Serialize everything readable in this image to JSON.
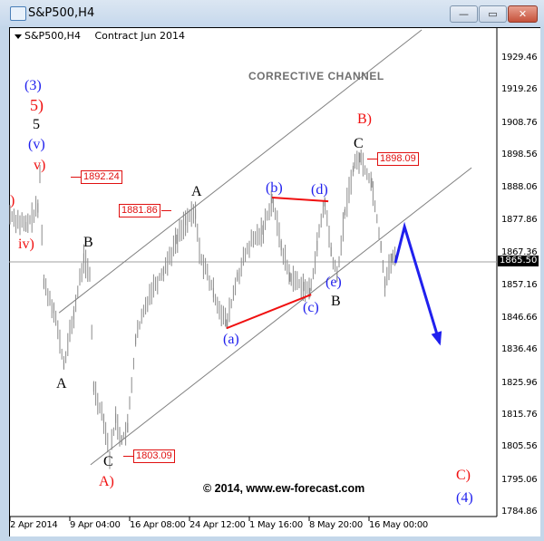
{
  "window": {
    "title": "S&P500,H4",
    "buttons": {
      "minimize": "—",
      "maximize": "▭",
      "close": "✕"
    }
  },
  "header": {
    "symbol": "S&P500,H4",
    "contract": "Contract Jun 2014"
  },
  "annotations": {
    "channel_title": "CORRECTIVE CHANNEL",
    "copyright": "© 2014, www.ew-forecast.com",
    "labels": {
      "w3": "(3)",
      "w5r": "5)",
      "w5": "5",
      "wv": "(v)",
      "wvr": "v)",
      "wiv": "iv)",
      "wpartial": ")",
      "B1": "B",
      "A1": "A",
      "C1": "C",
      "A_red": "A)",
      "A2": "A",
      "a": "(a)",
      "b": "(b)",
      "c": "(c)",
      "d": "(d)",
      "e": "(e)",
      "B2": "B",
      "C2": "C",
      "B_red": "B)",
      "C_red": "C)",
      "w4": "(4)"
    },
    "callouts": {
      "p1892": "1892.24",
      "p1881": "1881.86",
      "p1898": "1898.09",
      "p1803": "1803.09"
    }
  },
  "colors": {
    "bars": "#8a8a8a",
    "red": "#f01010",
    "blue": "#2020ee",
    "channel": "#808080"
  },
  "chart_data": {
    "type": "line",
    "title": "S&P500,H4",
    "ylim": [
      1784.86,
      1929.46
    ],
    "y_ticks": [
      "1929.46",
      "1919.26",
      "1908.76",
      "1898.56",
      "1888.06",
      "1877.86",
      "1867.36",
      "1857.16",
      "1846.66",
      "1836.46",
      "1825.96",
      "1815.76",
      "1805.56",
      "1795.06",
      "1784.86"
    ],
    "x_ticks": [
      "2 Apr 2014",
      "9 Apr 04:00",
      "16 Apr 08:00",
      "24 Apr 12:00",
      "1 May 16:00",
      "8 May 20:00",
      "16 May 00:00"
    ],
    "current_price": "1865.50",
    "price_path": [
      [
        0,
        1880
      ],
      [
        4,
        1876
      ],
      [
        7,
        1882
      ],
      [
        7.5,
        1892
      ],
      [
        8.5,
        1858
      ],
      [
        11,
        1850
      ],
      [
        13.5,
        1832
      ],
      [
        16,
        1848
      ],
      [
        18.5,
        1866
      ],
      [
        20,
        1860
      ],
      [
        21,
        1825
      ],
      [
        23.5,
        1815
      ],
      [
        25,
        1803
      ],
      [
        26.5,
        1815
      ],
      [
        28,
        1808
      ],
      [
        29.5,
        1812
      ],
      [
        31.5,
        1840
      ],
      [
        35,
        1855
      ],
      [
        38.5,
        1862
      ],
      [
        41.8,
        1872
      ],
      [
        44,
        1878
      ],
      [
        46.5,
        1880
      ],
      [
        47.5,
        1868
      ],
      [
        51,
        1855
      ],
      [
        54.3,
        1845
      ],
      [
        57,
        1860
      ],
      [
        60,
        1870
      ],
      [
        63.4,
        1875
      ],
      [
        65.7,
        1885
      ],
      [
        68,
        1870
      ],
      [
        70.2,
        1860
      ],
      [
        73.6,
        1857
      ],
      [
        75.2,
        1855
      ],
      [
        77,
        1870
      ],
      [
        78.9,
        1884
      ],
      [
        80.5,
        1868
      ],
      [
        82,
        1860
      ],
      [
        83.9,
        1880
      ],
      [
        86.1,
        1895
      ],
      [
        87.7,
        1898
      ],
      [
        90.7,
        1890
      ],
      [
        93,
        1870
      ],
      [
        94,
        1858
      ],
      [
        95.7,
        1866
      ],
      [
        96.6,
        1865.5
      ]
    ],
    "channel_upper": [
      [
        12.3,
        1848.6
      ],
      [
        103.2,
        1938.7
      ]
    ],
    "channel_lower": [
      [
        20.2,
        1800.2
      ],
      [
        115.7,
        1894.8
      ]
    ],
    "line_b_d": [
      [
        65.7,
        1885.3
      ],
      [
        79.8,
        1884.1
      ]
    ],
    "line_a_c": [
      [
        54.3,
        1843.7
      ],
      [
        75.5,
        1854.4
      ]
    ],
    "forecast_arrow": [
      [
        96.6,
        1864.5
      ],
      [
        98.9,
        1876
      ],
      [
        107.7,
        1839
      ]
    ]
  }
}
